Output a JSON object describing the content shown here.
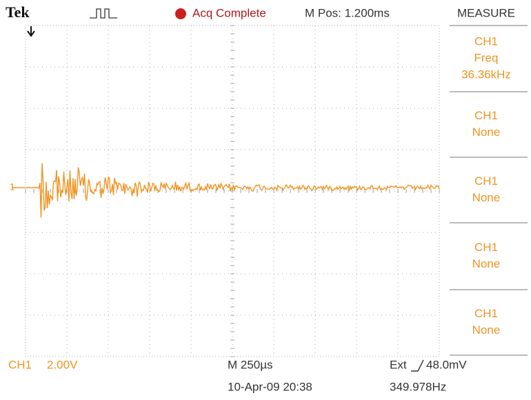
{
  "header": {
    "brand": "Tek",
    "status": "Acq Complete",
    "position": "M Pos: 1.200ms"
  },
  "channel_marker": "1",
  "menu": {
    "title": "MEASURE",
    "items": [
      {
        "lines": [
          "CH1",
          "Freq",
          "36.36kHz"
        ]
      },
      {
        "lines": [
          "CH1",
          "None"
        ]
      },
      {
        "lines": [
          "CH1",
          "None"
        ]
      },
      {
        "lines": [
          "CH1",
          "None"
        ]
      },
      {
        "lines": [
          "CH1",
          "None"
        ]
      }
    ]
  },
  "footer": {
    "channel": "CH1",
    "scale": "2.00V",
    "timebase": "M 250µs",
    "trigger_source": "Ext",
    "trigger_level": "48.0mV",
    "datetime": "10-Apr-09 20:38",
    "frequency": "349.978Hz"
  }
}
